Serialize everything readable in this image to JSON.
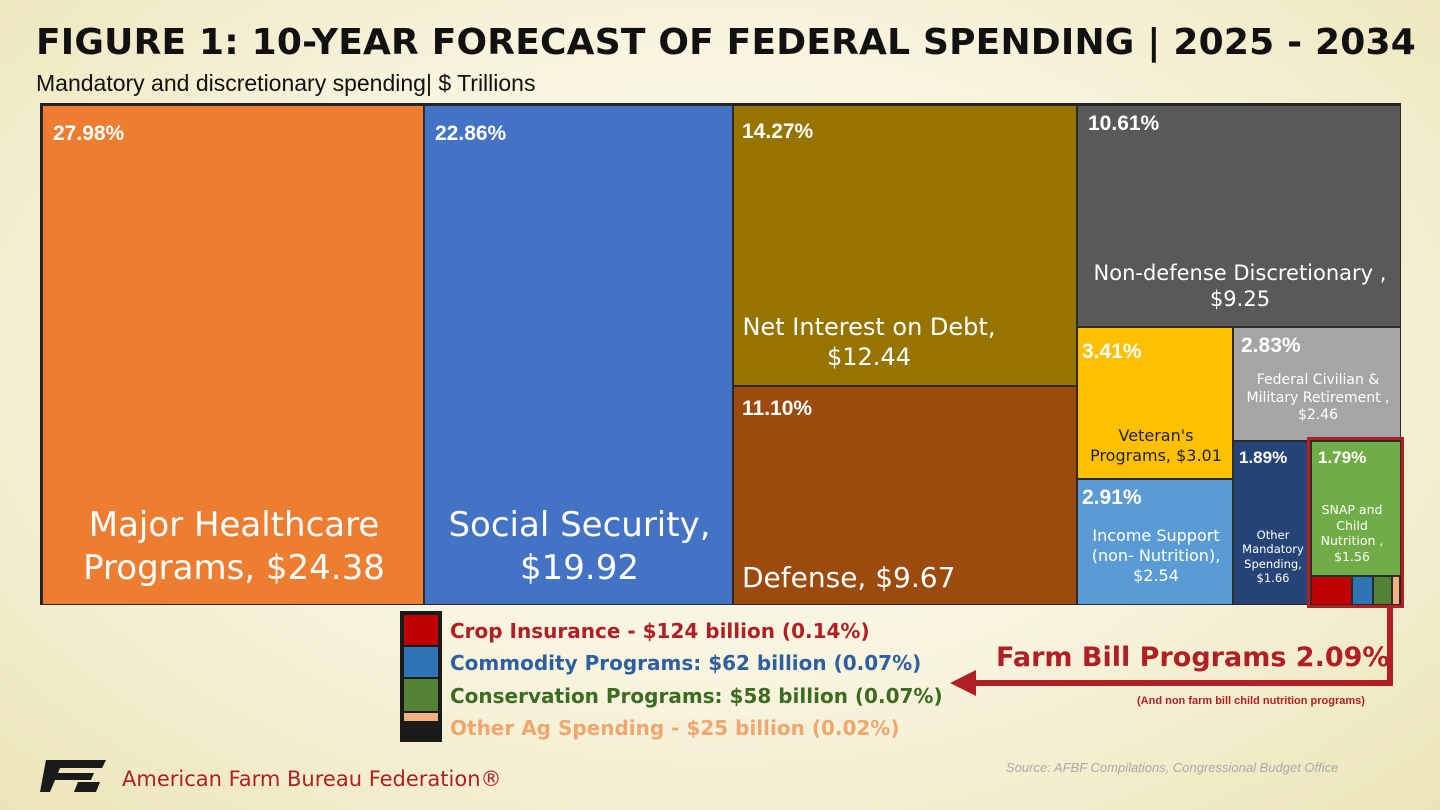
{
  "title": "FIGURE 1: 10-YEAR FORECAST OF FEDERAL SPENDING | 2025 - 2034",
  "subtitle": "Mandatory and discretionary spending| $ Trillions",
  "chart_data": {
    "type": "treemap",
    "unit": "$ Trillions",
    "cells": [
      {
        "pct": "27.98%",
        "lines": [
          "Major Healthcare",
          "Programs,  $24.38"
        ],
        "value": 24.38,
        "color": "#ed7d31"
      },
      {
        "pct": "22.86%",
        "lines": [
          "Social Security,",
          "$19.92"
        ],
        "value": 19.92,
        "color": "#4472c4"
      },
      {
        "pct": "14.27%",
        "lines": [
          "Net Interest on Debt,",
          "$12.44"
        ],
        "value": 12.44,
        "color": "#977400"
      },
      {
        "pct": "11.10%",
        "lines": [
          "Defense,  $9.67"
        ],
        "value": 9.67,
        "color": "#9c4a0d"
      },
      {
        "pct": "10.61%",
        "lines": [
          "Non-defense Discretionary ,",
          "$9.25"
        ],
        "value": 9.25,
        "color": "#595959"
      },
      {
        "pct": "3.41%",
        "lines": [
          "Veteran's",
          "Programs,  $3.01"
        ],
        "value": 3.01,
        "color": "#ffc000"
      },
      {
        "pct": "2.83%",
        "lines": [
          "Federal Civilian &",
          "Military Retirement ,",
          "$2.46"
        ],
        "value": 2.46,
        "color": "#a5a5a5"
      },
      {
        "pct": "2.91%",
        "lines": [
          "Income Support",
          "(non- Nutrition),",
          "$2.54"
        ],
        "value": 2.54,
        "color": "#5b9bd5"
      },
      {
        "pct": "1.89%",
        "lines": [
          "Other",
          "Mandatory",
          "Spending,",
          "$1.66"
        ],
        "value": 1.66,
        "color": "#264478"
      },
      {
        "pct": "1.79%",
        "lines": [
          "SNAP and",
          "Child",
          "Nutrition ,",
          "$1.56"
        ],
        "value": 1.56,
        "color": "#70ad47"
      }
    ],
    "farm_bill": [
      {
        "label": "Crop Insurance - $124 billion (0.14%)",
        "value_billion": 124,
        "pct": 0.14,
        "color": "#c00000"
      },
      {
        "label": "Commodity Programs: $62 billion (0.07%)",
        "value_billion": 62,
        "pct": 0.07,
        "color": "#2e75b6"
      },
      {
        "label": "Conservation Programs: $58 billion (0.07%)",
        "value_billion": 58,
        "pct": 0.07,
        "color": "#548235"
      },
      {
        "label": "Other Ag Spending - $25 billion (0.02%)",
        "value_billion": 25,
        "pct": 0.02,
        "color": "#f4b183"
      }
    ]
  },
  "legend_text_colors": [
    "#b11f24",
    "#2e5f9e",
    "#3d6b22",
    "#f0a66f"
  ],
  "callout": {
    "label": "Farm Bill Programs 2.09%",
    "sublabel": "(And non farm bill child nutrition programs)"
  },
  "source": "Source: AFBF Compilations, Congressional Budget Office",
  "brand": "American Farm Bureau Federation®",
  "logo_icon": "afbf-logo-icon"
}
